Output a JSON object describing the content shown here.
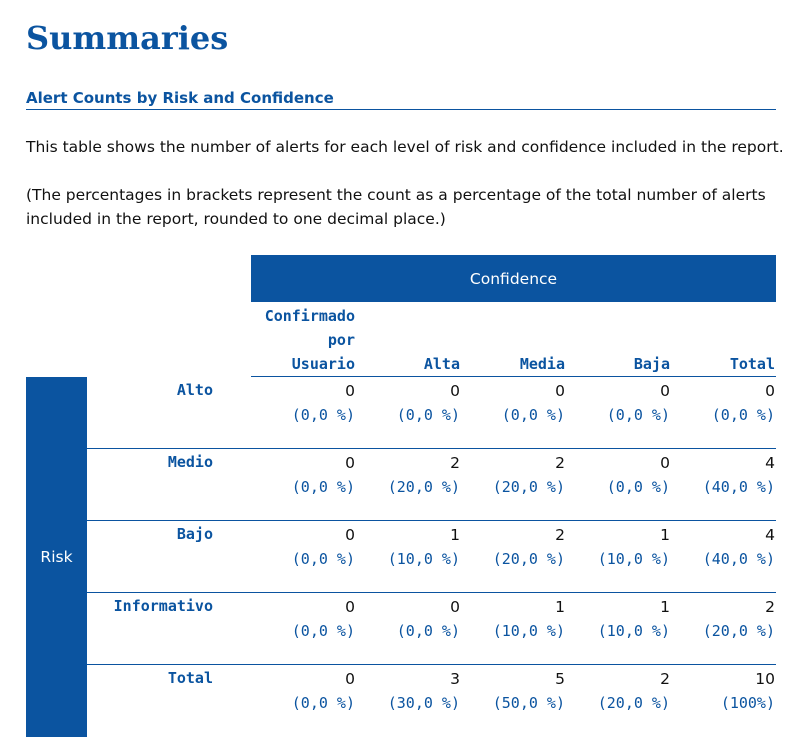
{
  "page": {
    "title": "Summaries",
    "section_title": "Alert Counts by Risk and Confidence",
    "para1": "This table shows the number of alerts for each level of risk and confidence included in the report.",
    "para2": "(The percentages in brackets represent the count as a percentage of the total number of alerts included in the report, rounded to one decimal place.)"
  },
  "table": {
    "confidence_header": "Confidence",
    "risk_header": "Risk",
    "columns": [
      "Confirmado\npor\nUsuario",
      "Alta",
      "Media",
      "Baja",
      "Total"
    ],
    "rows": [
      {
        "label": "Alto",
        "cells": [
          {
            "count": "0",
            "pct": "(0,0 %)"
          },
          {
            "count": "0",
            "pct": "(0,0 %)"
          },
          {
            "count": "0",
            "pct": "(0,0 %)"
          },
          {
            "count": "0",
            "pct": "(0,0 %)"
          },
          {
            "count": "0",
            "pct": "(0,0 %)"
          }
        ]
      },
      {
        "label": "Medio",
        "cells": [
          {
            "count": "0",
            "pct": "(0,0 %)"
          },
          {
            "count": "2",
            "pct": "(20,0 %)"
          },
          {
            "count": "2",
            "pct": "(20,0 %)"
          },
          {
            "count": "0",
            "pct": "(0,0 %)"
          },
          {
            "count": "4",
            "pct": "(40,0 %)"
          }
        ]
      },
      {
        "label": "Bajo",
        "cells": [
          {
            "count": "0",
            "pct": "(0,0 %)"
          },
          {
            "count": "1",
            "pct": "(10,0 %)"
          },
          {
            "count": "2",
            "pct": "(20,0 %)"
          },
          {
            "count": "1",
            "pct": "(10,0 %)"
          },
          {
            "count": "4",
            "pct": "(40,0 %)"
          }
        ]
      },
      {
        "label": "Informativo",
        "cells": [
          {
            "count": "0",
            "pct": "(0,0 %)"
          },
          {
            "count": "0",
            "pct": "(0,0 %)"
          },
          {
            "count": "1",
            "pct": "(10,0 %)"
          },
          {
            "count": "1",
            "pct": "(10,0 %)"
          },
          {
            "count": "2",
            "pct": "(20,0 %)"
          }
        ]
      },
      {
        "label": "Total",
        "cells": [
          {
            "count": "0",
            "pct": "(0,0 %)"
          },
          {
            "count": "3",
            "pct": "(30,0 %)"
          },
          {
            "count": "5",
            "pct": "(50,0 %)"
          },
          {
            "count": "2",
            "pct": "(20,0 %)"
          },
          {
            "count": "10",
            "pct": "(100%)"
          }
        ]
      }
    ]
  },
  "colors": {
    "accent": "#0b54a0",
    "text": "#111111",
    "background": "#ffffff"
  }
}
